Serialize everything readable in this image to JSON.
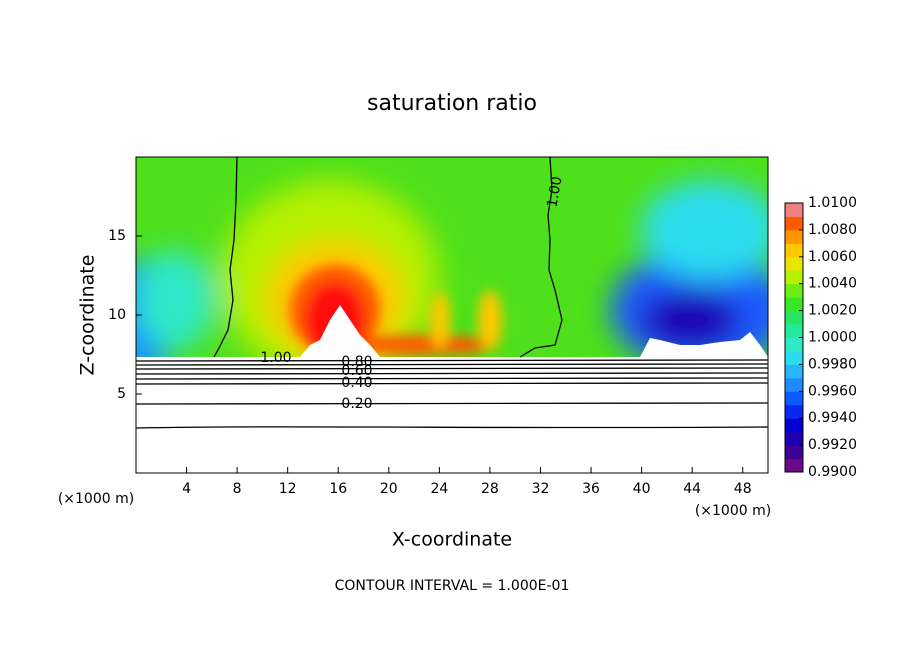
{
  "chart_data": {
    "type": "contour",
    "title": "saturation ratio",
    "x_label": "X-coordinate",
    "y_label": "Z-coordinate",
    "x_unit_left": "(×1000 m)",
    "x_unit_right": "(×1000 m)",
    "footer": "CONTOUR INTERVAL = 1.000E-01",
    "xlim": [
      0,
      50
    ],
    "xticks": [
      4,
      8,
      12,
      16,
      20,
      24,
      28,
      32,
      36,
      40,
      44,
      48
    ],
    "ylim": [
      0,
      20
    ],
    "yticks": [
      5,
      10,
      15
    ],
    "contour_labels": [
      "1.00",
      "0.80",
      "0.60",
      "0.40",
      "0.20",
      "1.00"
    ],
    "colorbar": {
      "lim": [
        0.99,
        1.01
      ],
      "ticks": [
        {
          "value": 0.99,
          "label": "0.9900"
        },
        {
          "value": 0.992,
          "label": "0.9920"
        },
        {
          "value": 0.994,
          "label": "0.9940"
        },
        {
          "value": 0.996,
          "label": "0.9960"
        },
        {
          "value": 0.998,
          "label": "0.9980"
        },
        {
          "value": 1.0,
          "label": "1.0000"
        },
        {
          "value": 1.002,
          "label": "1.0020"
        },
        {
          "value": 1.004,
          "label": "1.0040"
        },
        {
          "value": 1.006,
          "label": "1.0060"
        },
        {
          "value": 1.008,
          "label": "1.0080"
        },
        {
          "value": 1.01,
          "label": "1.0100"
        }
      ],
      "colors": [
        "#6a0a8a",
        "#3c0096",
        "#1e00b4",
        "#0000d2",
        "#0a28f0",
        "#0a5aff",
        "#1e8cff",
        "#28b4ff",
        "#2adcee",
        "#2ee8c8",
        "#24e89a",
        "#28e664",
        "#3ae628",
        "#6cee14",
        "#b4f000",
        "#e6e600",
        "#ffc800",
        "#ff9600",
        "#ff5a00",
        "#f08080"
      ]
    }
  }
}
